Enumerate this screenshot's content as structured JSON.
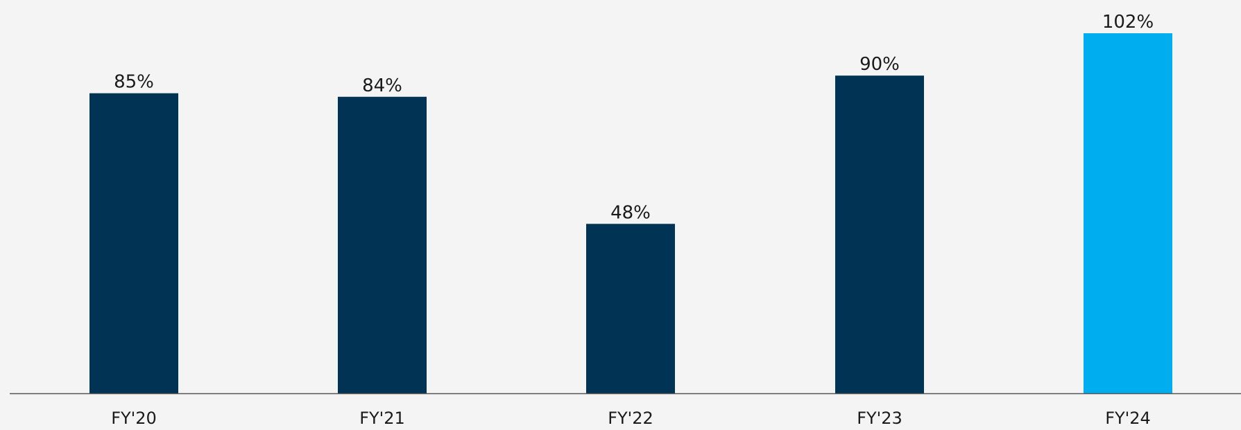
{
  "chart_data": {
    "type": "bar",
    "categories": [
      "FY'20",
      "FY'21",
      "FY'22",
      "FY'23",
      "FY'24"
    ],
    "values": [
      85,
      84,
      48,
      90,
      102
    ],
    "value_labels": [
      "85%",
      "84%",
      "48%",
      "90%",
      "102%"
    ],
    "title": "",
    "xlabel": "",
    "ylabel": "",
    "ylim": [
      0,
      102
    ],
    "grid": false,
    "colors": {
      "default": "#003354",
      "highlight": "#00aeef",
      "axis": "#555555"
    },
    "highlight_category": "FY'24"
  }
}
